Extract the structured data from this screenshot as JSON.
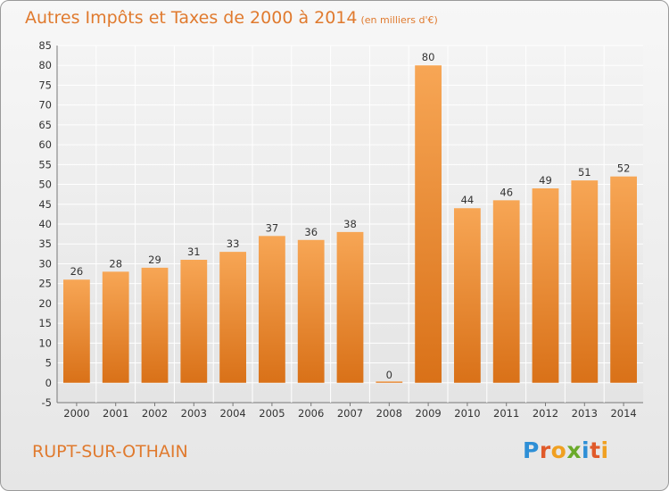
{
  "header": {
    "title": "Autres Impôts et Taxes de 2000 à 2014",
    "subtitle": "(en milliers d'€)"
  },
  "footer": {
    "city": "RUPT-SUR-OTHAIN",
    "logo": "Proxiti"
  },
  "colors": {
    "bar_top": "#f7a655",
    "bar_bottom": "#d97118",
    "accent": "#e07a2e"
  },
  "chart_data": {
    "type": "bar",
    "title": "Autres Impôts et Taxes de 2000 à 2014",
    "subtitle": "(en milliers d'€)",
    "categories": [
      "2000",
      "2001",
      "2002",
      "2003",
      "2004",
      "2005",
      "2006",
      "2007",
      "2008",
      "2009",
      "2010",
      "2011",
      "2012",
      "2013",
      "2014"
    ],
    "values": [
      26,
      28,
      29,
      31,
      33,
      37,
      36,
      38,
      0,
      80,
      44,
      46,
      49,
      51,
      52
    ],
    "ylim": [
      -5,
      85
    ],
    "yticks": [
      -5,
      0,
      5,
      10,
      15,
      20,
      25,
      30,
      35,
      40,
      45,
      50,
      55,
      60,
      65,
      70,
      75,
      80,
      85
    ],
    "grid": true,
    "data_labels": true
  }
}
